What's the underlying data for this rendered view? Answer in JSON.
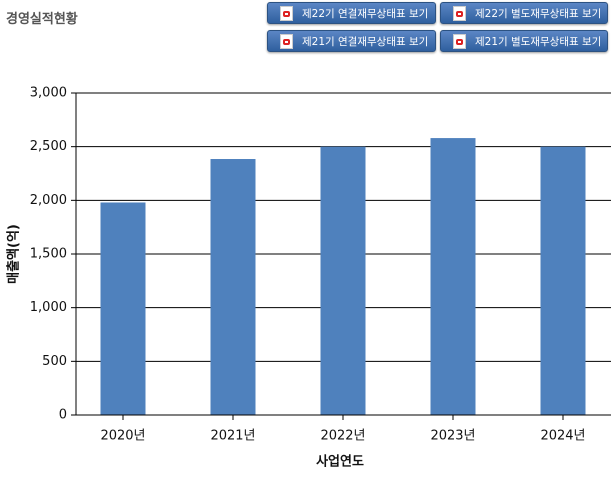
{
  "header": {
    "title": "경영실적현황"
  },
  "buttons": [
    "제22기 연결재무상태표 보기",
    "제22기 별도재무상태표 보기",
    "제21기 연결재무상태표 보기",
    "제21기 별도재무상태표 보기"
  ],
  "chart_data": {
    "type": "bar",
    "x_label": "사업연도",
    "y_label": "매출액(억)",
    "categories": [
      "2020년",
      "2021년",
      "2022년",
      "2023년",
      "2024년"
    ],
    "values": [
      1980,
      2385,
      2500,
      2580,
      2500
    ],
    "color": "#4f81bd",
    "ylim": [
      0,
      3000
    ],
    "yticks": [
      0,
      500,
      {
        "value": 1000,
        "label": "1,000"
      },
      {
        "value": 1500,
        "label": "1,500"
      },
      {
        "value": 2000,
        "label": "2,000"
      },
      {
        "value": 2500,
        "label": "2,500"
      },
      {
        "value": 3000,
        "label": "3,000"
      }
    ],
    "grid": true
  }
}
